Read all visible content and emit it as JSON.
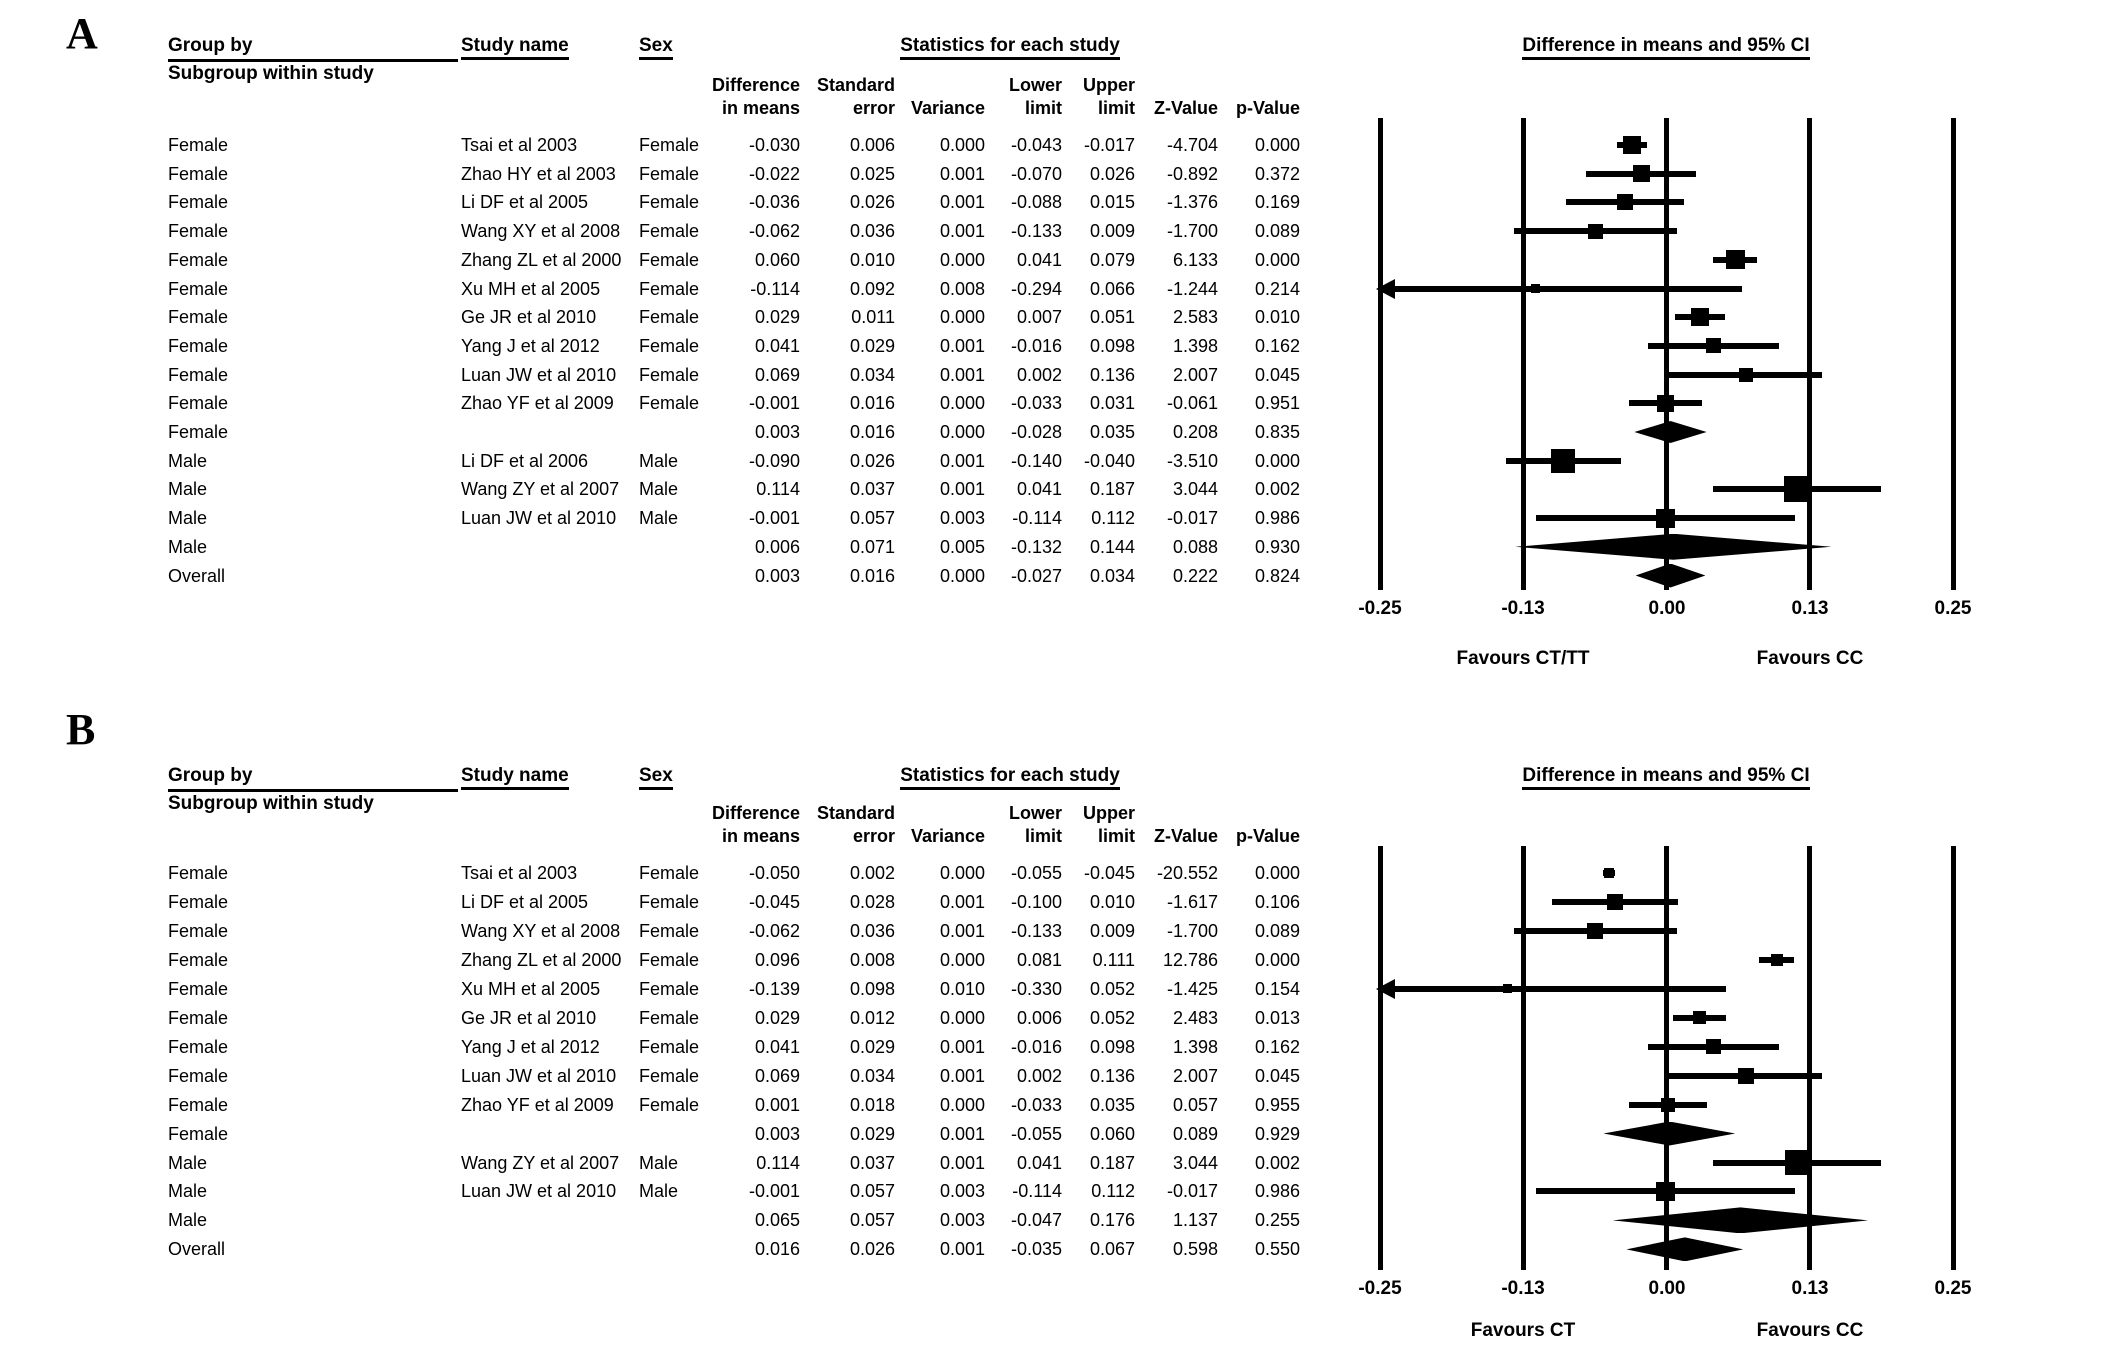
{
  "chart_data": [
    {
      "type": "scatter",
      "subtype": "forest-plot-meta-analysis",
      "panel_label": "A",
      "title": "Difference in means and 95% CI",
      "xlim": [
        -0.25,
        0.25
      ],
      "xticks": [
        -0.25,
        -0.13,
        0.0,
        0.13,
        0.25
      ],
      "xtick_labels": [
        "-0.25",
        "-0.13",
        "0.00",
        "0.13",
        "0.25"
      ],
      "favours_left": "Favours CT/TT",
      "favours_right": "Favours CC",
      "header": {
        "group_by": "Group by",
        "subgroup": "Subgroup within study",
        "study_name": "Study name",
        "sex": "Sex",
        "stats_title": "Statistics for each study",
        "plot_title": "Difference in means and 95% CI",
        "sub": {
          "diff1": "Difference",
          "diff2": "in means",
          "se1": "Standard",
          "se2": "error",
          "variance": "Variance",
          "lower1": "Lower",
          "lower2": "limit",
          "upper1": "Upper",
          "upper2": "limit",
          "z": "Z-Value",
          "p": "p-Value"
        }
      },
      "rows": [
        {
          "group": "Female",
          "study": "Tsai et al 2003",
          "sex": "Female",
          "diff": "-0.030",
          "se": "0.006",
          "variance": "0.000",
          "lower": "-0.043",
          "upper": "-0.017",
          "z": "-4.704",
          "p": "0.000",
          "marker": "square",
          "size": 18
        },
        {
          "group": "Female",
          "study": "Zhao HY et al 2003",
          "sex": "Female",
          "diff": "-0.022",
          "se": "0.025",
          "variance": "0.001",
          "lower": "-0.070",
          "upper": "0.026",
          "z": "-0.892",
          "p": "0.372",
          "marker": "square",
          "size": 17
        },
        {
          "group": "Female",
          "study": "Li DF et al 2005",
          "sex": "Female",
          "diff": "-0.036",
          "se": "0.026",
          "variance": "0.001",
          "lower": "-0.088",
          "upper": "0.015",
          "z": "-1.376",
          "p": "0.169",
          "marker": "square",
          "size": 16
        },
        {
          "group": "Female",
          "study": "Wang XY et al 2008",
          "sex": "Female",
          "diff": "-0.062",
          "se": "0.036",
          "variance": "0.001",
          "lower": "-0.133",
          "upper": "0.009",
          "z": "-1.700",
          "p": "0.089",
          "marker": "square",
          "size": 15
        },
        {
          "group": "Female",
          "study": "Zhang ZL et al 2000",
          "sex": "Female",
          "diff": "0.060",
          "se": "0.010",
          "variance": "0.000",
          "lower": "0.041",
          "upper": "0.079",
          "z": "6.133",
          "p": "0.000",
          "marker": "square",
          "size": 19
        },
        {
          "group": "Female",
          "study": "Xu MH et al 2005",
          "sex": "Female",
          "diff": "-0.114",
          "se": "0.092",
          "variance": "0.008",
          "lower": "-0.294",
          "upper": "0.066",
          "z": "-1.244",
          "p": "0.214",
          "marker": "square",
          "size": 9,
          "arrow": true
        },
        {
          "group": "Female",
          "study": "Ge JR et al 2010",
          "sex": "Female",
          "diff": "0.029",
          "se": "0.011",
          "variance": "0.000",
          "lower": "0.007",
          "upper": "0.051",
          "z": "2.583",
          "p": "0.010",
          "marker": "square",
          "size": 18
        },
        {
          "group": "Female",
          "study": "Yang J et al 2012",
          "sex": "Female",
          "diff": "0.041",
          "se": "0.029",
          "variance": "0.001",
          "lower": "-0.016",
          "upper": "0.098",
          "z": "1.398",
          "p": "0.162",
          "marker": "square",
          "size": 15
        },
        {
          "group": "Female",
          "study": "Luan JW et al 2010",
          "sex": "Female",
          "diff": "0.069",
          "se": "0.034",
          "variance": "0.001",
          "lower": "0.002",
          "upper": "0.136",
          "z": "2.007",
          "p": "0.045",
          "marker": "square",
          "size": 14
        },
        {
          "group": "Female",
          "study": "Zhao YF et al 2009",
          "sex": "Female",
          "diff": "-0.001",
          "se": "0.016",
          "variance": "0.000",
          "lower": "-0.033",
          "upper": "0.031",
          "z": "-0.061",
          "p": "0.951",
          "marker": "square",
          "size": 17
        },
        {
          "group": "Female",
          "study": "",
          "sex": "",
          "diff": "0.003",
          "se": "0.016",
          "variance": "0.000",
          "lower": "-0.028",
          "upper": "0.035",
          "z": "0.208",
          "p": "0.835",
          "marker": "diamond",
          "size": 22
        },
        {
          "group": "Male",
          "study": "Li DF et al 2006",
          "sex": "Male",
          "diff": "-0.090",
          "se": "0.026",
          "variance": "0.001",
          "lower": "-0.140",
          "upper": "-0.040",
          "z": "-3.510",
          "p": "0.000",
          "marker": "square",
          "size": 24
        },
        {
          "group": "Male",
          "study": "Wang ZY et al 2007",
          "sex": "Male",
          "diff": "0.114",
          "se": "0.037",
          "variance": "0.001",
          "lower": "0.041",
          "upper": "0.187",
          "z": "3.044",
          "p": "0.002",
          "marker": "square",
          "size": 26
        },
        {
          "group": "Male",
          "study": "Luan JW et al 2010",
          "sex": "Male",
          "diff": "-0.001",
          "se": "0.057",
          "variance": "0.003",
          "lower": "-0.114",
          "upper": "0.112",
          "z": "-0.017",
          "p": "0.986",
          "marker": "square",
          "size": 19
        },
        {
          "group": "Male",
          "study": "",
          "sex": "",
          "diff": "0.006",
          "se": "0.071",
          "variance": "0.005",
          "lower": "-0.132",
          "upper": "0.144",
          "z": "0.088",
          "p": "0.930",
          "marker": "diamond",
          "size": 26
        },
        {
          "group": "Overall",
          "study": "",
          "sex": "",
          "diff": "0.003",
          "se": "0.016",
          "variance": "0.000",
          "lower": "-0.027",
          "upper": "0.034",
          "z": "0.222",
          "p": "0.824",
          "marker": "diamond",
          "size": 24
        }
      ]
    },
    {
      "type": "scatter",
      "subtype": "forest-plot-meta-analysis",
      "panel_label": "B",
      "title": "Difference in means and 95% CI",
      "xlim": [
        -0.25,
        0.25
      ],
      "xticks": [
        -0.25,
        -0.13,
        0.0,
        0.13,
        0.25
      ],
      "xtick_labels": [
        "-0.25",
        "-0.13",
        "0.00",
        "0.13",
        "0.25"
      ],
      "favours_left": "Favours CT",
      "favours_right": "Favours CC",
      "header": {
        "group_by": "Group by",
        "subgroup": "Subgroup within study",
        "study_name": "Study name",
        "sex": "Sex",
        "stats_title": "Statistics for each study",
        "plot_title": "Difference in means and 95% CI",
        "sub": {
          "diff1": "Difference",
          "diff2": "in means",
          "se1": "Standard",
          "se2": "error",
          "variance": "Variance",
          "lower1": "Lower",
          "lower2": "limit",
          "upper1": "Upper",
          "upper2": "limit",
          "z": "Z-Value",
          "p": "p-Value"
        }
      },
      "rows": [
        {
          "group": "Female",
          "study": "Tsai et al 2003",
          "sex": "Female",
          "diff": "-0.050",
          "se": "0.002",
          "variance": "0.000",
          "lower": "-0.055",
          "upper": "-0.045",
          "z": "-20.552",
          "p": "0.000",
          "marker": "square",
          "size": 10
        },
        {
          "group": "Female",
          "study": "Li DF et al 2005",
          "sex": "Female",
          "diff": "-0.045",
          "se": "0.028",
          "variance": "0.001",
          "lower": "-0.100",
          "upper": "0.010",
          "z": "-1.617",
          "p": "0.106",
          "marker": "square",
          "size": 16
        },
        {
          "group": "Female",
          "study": "Wang XY et al 2008",
          "sex": "Female",
          "diff": "-0.062",
          "se": "0.036",
          "variance": "0.001",
          "lower": "-0.133",
          "upper": "0.009",
          "z": "-1.700",
          "p": "0.089",
          "marker": "square",
          "size": 16
        },
        {
          "group": "Female",
          "study": "Zhang ZL et al 2000",
          "sex": "Female",
          "diff": "0.096",
          "se": "0.008",
          "variance": "0.000",
          "lower": "0.081",
          "upper": "0.111",
          "z": "12.786",
          "p": "0.000",
          "marker": "square",
          "size": 12
        },
        {
          "group": "Female",
          "study": "Xu MH et al 2005",
          "sex": "Female",
          "diff": "-0.139",
          "se": "0.098",
          "variance": "0.010",
          "lower": "-0.330",
          "upper": "0.052",
          "z": "-1.425",
          "p": "0.154",
          "marker": "square",
          "size": 9,
          "arrow": true
        },
        {
          "group": "Female",
          "study": "Ge JR et al 2010",
          "sex": "Female",
          "diff": "0.029",
          "se": "0.012",
          "variance": "0.000",
          "lower": "0.006",
          "upper": "0.052",
          "z": "2.483",
          "p": "0.013",
          "marker": "square",
          "size": 13
        },
        {
          "group": "Female",
          "study": "Yang J et al 2012",
          "sex": "Female",
          "diff": "0.041",
          "se": "0.029",
          "variance": "0.001",
          "lower": "-0.016",
          "upper": "0.098",
          "z": "1.398",
          "p": "0.162",
          "marker": "square",
          "size": 15
        },
        {
          "group": "Female",
          "study": "Luan JW et al 2010",
          "sex": "Female",
          "diff": "0.069",
          "se": "0.034",
          "variance": "0.001",
          "lower": "0.002",
          "upper": "0.136",
          "z": "2.007",
          "p": "0.045",
          "marker": "square",
          "size": 16
        },
        {
          "group": "Female",
          "study": "Zhao YF et al 2009",
          "sex": "Female",
          "diff": "0.001",
          "se": "0.018",
          "variance": "0.000",
          "lower": "-0.033",
          "upper": "0.035",
          "z": "0.057",
          "p": "0.955",
          "marker": "square",
          "size": 14
        },
        {
          "group": "Female",
          "study": "",
          "sex": "",
          "diff": "0.003",
          "se": "0.029",
          "variance": "0.001",
          "lower": "-0.055",
          "upper": "0.060",
          "z": "0.089",
          "p": "0.929",
          "marker": "diamond",
          "size": 24
        },
        {
          "group": "Male",
          "study": "Wang ZY et al 2007",
          "sex": "Male",
          "diff": "0.114",
          "se": "0.037",
          "variance": "0.001",
          "lower": "0.041",
          "upper": "0.187",
          "z": "3.044",
          "p": "0.002",
          "marker": "square",
          "size": 25
        },
        {
          "group": "Male",
          "study": "Luan JW et al 2010",
          "sex": "Male",
          "diff": "-0.001",
          "se": "0.057",
          "variance": "0.003",
          "lower": "-0.114",
          "upper": "0.112",
          "z": "-0.017",
          "p": "0.986",
          "marker": "square",
          "size": 19
        },
        {
          "group": "Male",
          "study": "",
          "sex": "",
          "diff": "0.065",
          "se": "0.057",
          "variance": "0.003",
          "lower": "-0.047",
          "upper": "0.176",
          "z": "1.137",
          "p": "0.255",
          "marker": "diamond",
          "size": 26
        },
        {
          "group": "Overall",
          "study": "",
          "sex": "",
          "diff": "0.016",
          "se": "0.026",
          "variance": "0.001",
          "lower": "-0.035",
          "upper": "0.067",
          "z": "0.598",
          "p": "0.550",
          "marker": "diamond",
          "size": 24
        }
      ]
    }
  ]
}
